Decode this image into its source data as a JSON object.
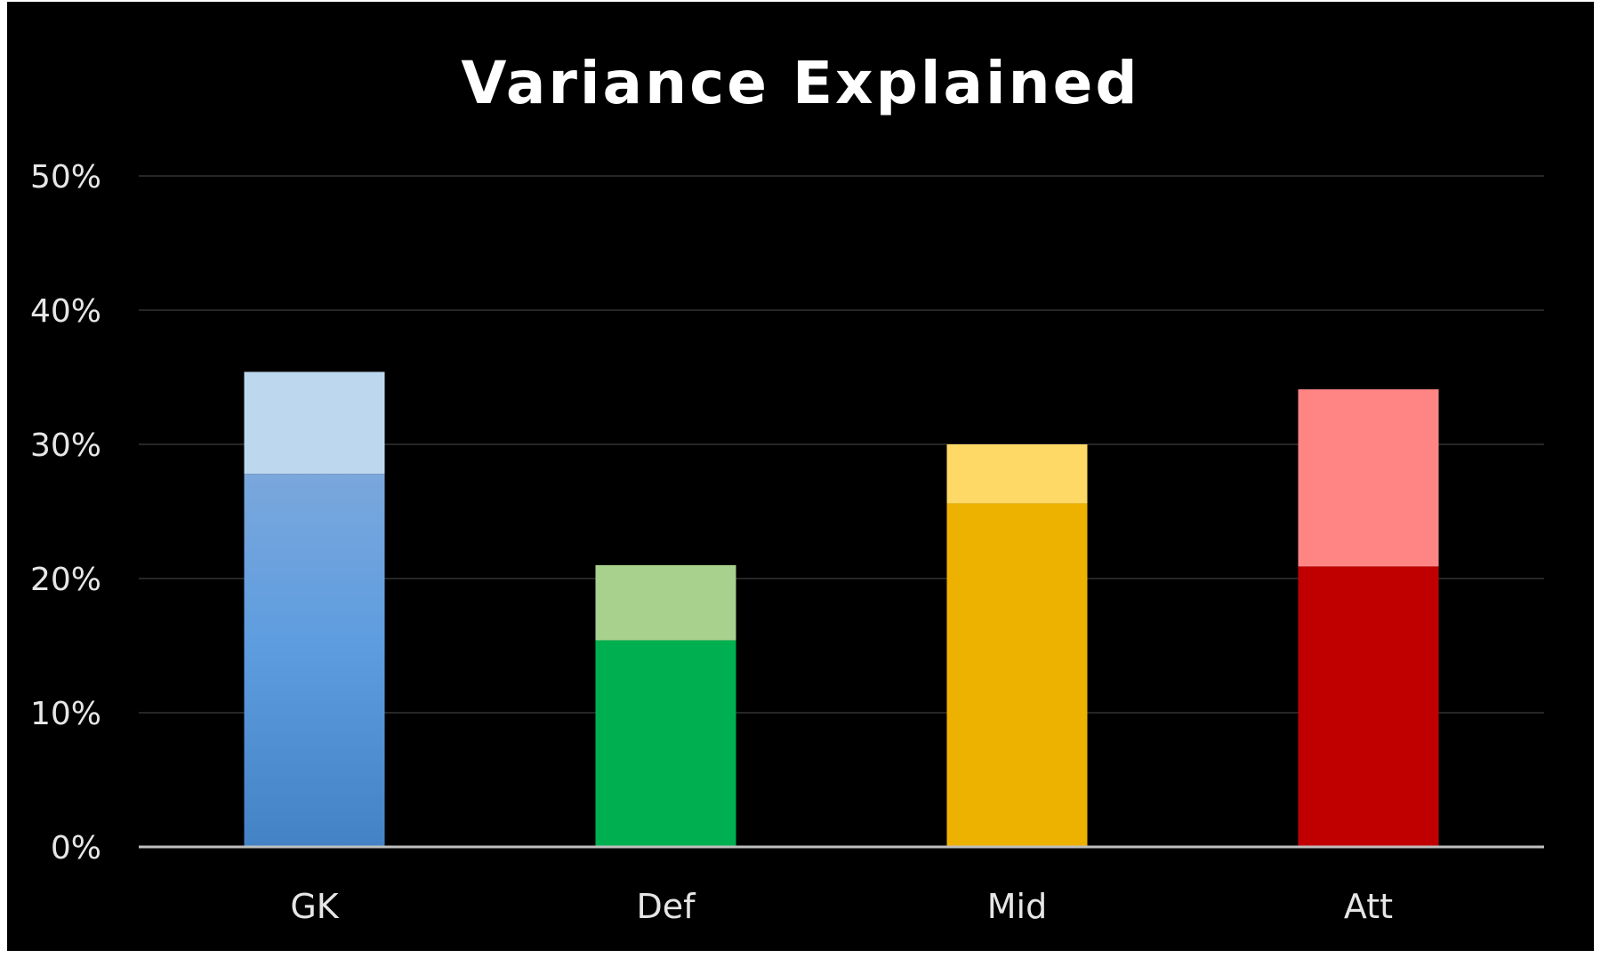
{
  "chart_data": {
    "type": "bar",
    "stacked": true,
    "title": "Variance Explained",
    "xlabel": "",
    "ylabel": "",
    "categories": [
      "GK",
      "Def",
      "Mid",
      "Att"
    ],
    "y_ticks": [
      "0%",
      "10%",
      "20%",
      "30%",
      "40%",
      "50%"
    ],
    "ylim": [
      0,
      50
    ],
    "grid": true,
    "legend": "none",
    "series": [
      {
        "values": [
          27.8,
          15.4,
          25.6,
          20.9
        ],
        "colors": [
          "#4f8fd4",
          "#00b050",
          "#edb100",
          "#c00000"
        ]
      },
      {
        "values": [
          7.6,
          5.6,
          4.4,
          13.2
        ],
        "colors": [
          "#bdd7ee",
          "#a9d18e",
          "#ffd966",
          "#ff8585"
        ]
      }
    ],
    "colors": {
      "background": "#000000",
      "gridline": "#262626",
      "axis": "#bfbfbf",
      "text": "#e6e6e6"
    }
  }
}
